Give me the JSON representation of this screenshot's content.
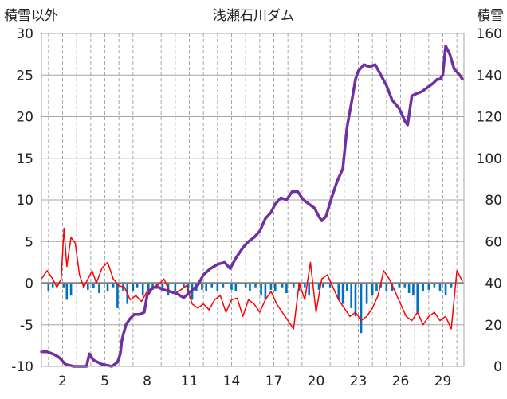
{
  "chart_data": {
    "type": "line",
    "title": "浅瀬石川ダム",
    "ylabel_left": "積雪以外",
    "ylabel_right": "積雪",
    "ylim_left": [
      -10,
      30
    ],
    "ylim_right": [
      0,
      160
    ],
    "xlim": [
      0.5,
      30.5
    ],
    "left_ticks": [
      30,
      25,
      20,
      15,
      10,
      5,
      0,
      -5,
      -10
    ],
    "right_ticks": [
      160,
      140,
      120,
      100,
      80,
      60,
      40,
      20,
      0
    ],
    "x_ticks": [
      2,
      5,
      8,
      11,
      14,
      17,
      20,
      23,
      26,
      29
    ],
    "grid": true,
    "zero_line": 0,
    "colors": {
      "snow_depth": "#7030a0",
      "temperature": "#ff0000",
      "precipitation": "#0070c0",
      "zero_line": "#808080",
      "grid": "#a6a6a6"
    },
    "series": [
      {
        "key": "snow_depth",
        "axis": "right",
        "x": [
          0.5,
          0.9,
          1.3,
          1.6,
          1.8,
          2.2,
          2.8,
          3.4,
          3.7,
          3.9,
          4.2,
          4.8,
          5.5,
          5.9,
          6.1,
          6.2,
          6.3,
          6.5,
          6.8,
          7.1,
          7.5,
          7.8,
          8.0,
          8.4,
          8.8,
          9.1,
          9.6,
          10.1,
          10.6,
          11.1,
          11.6,
          12.0,
          12.5,
          13.0,
          13.5,
          13.9,
          14.3,
          14.8,
          15.2,
          15.6,
          16.0,
          16.4,
          16.8,
          17.1,
          17.5,
          17.9,
          18.3,
          18.7,
          19.1,
          19.5,
          19.9,
          20.2,
          20.4,
          20.7,
          21.1,
          21.5,
          21.9,
          22.2,
          22.6,
          22.8,
          23.0,
          23.4,
          23.8,
          24.2,
          24.6,
          25.0,
          25.4,
          25.9,
          26.3,
          26.5,
          26.8,
          27.1,
          27.5,
          27.9,
          28.3,
          28.6,
          28.8,
          29.0,
          29.2,
          29.5,
          29.8,
          30.2,
          30.4
        ],
        "values": [
          7,
          7,
          6,
          5,
          4,
          1,
          0,
          0,
          0,
          6,
          3,
          1,
          0,
          2,
          6,
          12,
          15,
          20,
          23,
          25,
          25,
          26,
          34,
          38,
          38,
          37,
          36,
          35,
          33,
          36,
          39,
          44,
          47,
          49,
          50,
          47,
          52,
          57,
          60,
          62,
          65,
          71,
          74,
          78,
          81,
          80,
          84,
          84,
          80,
          78,
          76,
          72,
          70,
          72,
          81,
          89,
          95,
          115,
          130,
          138,
          142,
          145,
          144,
          145,
          140,
          135,
          128,
          124,
          118,
          116,
          130,
          131,
          132,
          134,
          136,
          138,
          138,
          140,
          154,
          150,
          143,
          140,
          138
        ]
      },
      {
        "key": "temperature",
        "axis": "left",
        "x": [
          0.5,
          0.9,
          1.3,
          1.6,
          1.9,
          2.1,
          2.3,
          2.6,
          2.9,
          3.2,
          3.5,
          3.8,
          4.1,
          4.4,
          4.8,
          5.2,
          5.6,
          6.0,
          6.4,
          6.8,
          7.2,
          7.6,
          8.0,
          8.4,
          8.8,
          9.2,
          9.6,
          10.0,
          10.4,
          10.8,
          11.2,
          11.6,
          12.0,
          12.4,
          12.8,
          13.2,
          13.6,
          14.0,
          14.4,
          14.8,
          15.2,
          15.6,
          16.0,
          16.4,
          16.8,
          17.2,
          17.6,
          18.0,
          18.4,
          18.8,
          19.2,
          19.6,
          20.0,
          20.4,
          20.8,
          21.2,
          21.6,
          22.0,
          22.4,
          22.8,
          23.2,
          23.6,
          24.0,
          24.4,
          24.8,
          25.2,
          25.6,
          26.0,
          26.4,
          26.8,
          27.2,
          27.6,
          28.0,
          28.4,
          28.8,
          29.2,
          29.6,
          30.0,
          30.4
        ],
        "values": [
          0.5,
          1.5,
          0.5,
          -0.5,
          0.5,
          6.6,
          2.0,
          5.5,
          4.8,
          1.0,
          -0.5,
          0.5,
          1.5,
          0.0,
          1.8,
          2.5,
          0.5,
          -0.3,
          -0.5,
          -2.0,
          -1.5,
          -2.2,
          -1.0,
          -0.5,
          -0.2,
          0.5,
          -1.0,
          -1.2,
          -0.8,
          -0.3,
          -2.5,
          -3.0,
          -2.5,
          -3.2,
          -2.0,
          -1.5,
          -3.5,
          -2.0,
          -1.8,
          -4.0,
          -2.0,
          -2.5,
          -3.5,
          -2.0,
          -1.0,
          -2.5,
          -3.5,
          -4.5,
          -5.5,
          0.0,
          -2.0,
          2.5,
          -3.5,
          0.5,
          1.0,
          -0.5,
          -2.0,
          -3.0,
          -4.0,
          -3.5,
          -4.5,
          -4.0,
          -3.0,
          -1.5,
          1.5,
          0.5,
          -1.0,
          -2.5,
          -4.0,
          -4.5,
          -3.5,
          -5.0,
          -4.0,
          -3.5,
          -4.5,
          -4.0,
          -5.5,
          1.5,
          0.2
        ]
      },
      {
        "key": "precipitation",
        "axis": "left",
        "type": "bar",
        "x": [
          1.0,
          1.3,
          2.1,
          2.3,
          2.6,
          3.5,
          3.8,
          4.2,
          4.6,
          5.2,
          5.6,
          5.9,
          6.3,
          6.6,
          7.0,
          7.3,
          7.7,
          8.1,
          8.4,
          8.7,
          9.1,
          9.5,
          10.0,
          10.6,
          10.9,
          11.2,
          11.5,
          11.9,
          12.2,
          12.6,
          13.0,
          13.4,
          14.0,
          14.3,
          15.0,
          15.3,
          15.7,
          16.1,
          16.4,
          16.8,
          17.1,
          17.6,
          17.9,
          18.4,
          18.8,
          19.2,
          19.5,
          20.2,
          20.5,
          21.0,
          21.6,
          21.9,
          22.2,
          22.5,
          22.8,
          23.2,
          23.6,
          24.0,
          24.3,
          24.6,
          25.0,
          25.4,
          25.9,
          26.3,
          26.6,
          26.9,
          27.2,
          27.6,
          28.0,
          28.4,
          28.8,
          29.2,
          29.6
        ],
        "values": [
          -1.0,
          -0.5,
          -0.5,
          -2.0,
          -1.5,
          -0.5,
          -0.8,
          -0.6,
          -1.2,
          -1.0,
          -0.5,
          -3.0,
          -1.0,
          -2.5,
          -1.0,
          -0.5,
          -1.5,
          -1.0,
          -0.8,
          -0.5,
          -1.0,
          -1.5,
          -1.0,
          -0.5,
          -1.5,
          -2.0,
          -1.0,
          -0.8,
          -1.0,
          -0.5,
          -1.0,
          -0.5,
          -0.8,
          -1.0,
          -0.5,
          -1.0,
          -0.5,
          -1.5,
          -2.0,
          -0.8,
          -1.0,
          -0.5,
          -1.2,
          -0.5,
          -1.0,
          -0.5,
          -1.5,
          -0.8,
          -0.5,
          -0.5,
          -2.0,
          -2.5,
          -1.0,
          -3.0,
          -4.0,
          -6.0,
          -2.5,
          -1.5,
          -1.0,
          -0.5,
          -1.0,
          -1.0,
          -0.5,
          -0.5,
          -1.2,
          -1.5,
          -3.5,
          -1.0,
          -0.8,
          -0.5,
          -1.0,
          -1.5,
          -0.5
        ]
      }
    ]
  }
}
